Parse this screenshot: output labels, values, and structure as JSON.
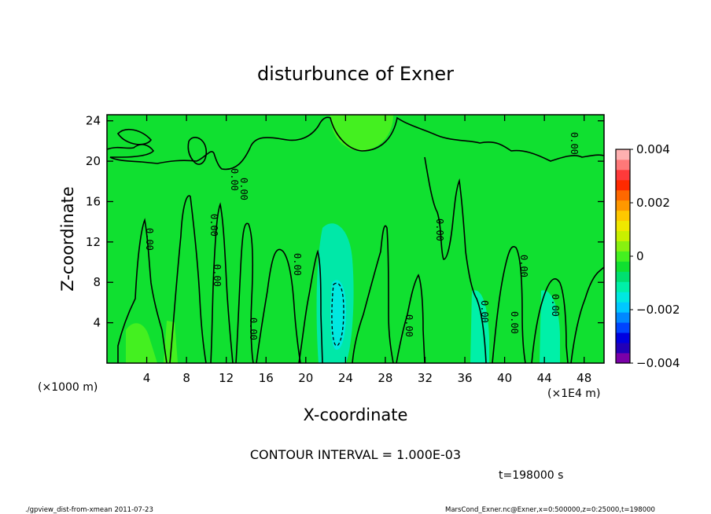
{
  "chart_data": {
    "type": "heatmap",
    "title": "disturbunce of Exner",
    "xlabel": "X-coordinate",
    "ylabel": "Z-coordinate",
    "x_ticks": [
      "4",
      "8",
      "12",
      "16",
      "20",
      "24",
      "28",
      "32",
      "36",
      "40",
      "44",
      "48"
    ],
    "x_tick_values": [
      4,
      8,
      12,
      16,
      20,
      24,
      28,
      32,
      36,
      40,
      44,
      48
    ],
    "xlim": [
      0,
      50
    ],
    "y_ticks": [
      "4",
      "8",
      "12",
      "16",
      "20",
      "24"
    ],
    "y_tick_values": [
      4,
      8,
      12,
      16,
      20,
      24
    ],
    "ylim": [
      0,
      24.6
    ],
    "x_unit_label": "(×1E4 m)",
    "y_unit_label": "(×1000 m)",
    "colorbar": {
      "labels": [
        "0.004",
        "0.002",
        "0",
        "−0.002",
        "−0.004"
      ],
      "range": [
        -0.004,
        0.004
      ],
      "colors": [
        "#7a00a8",
        "#2200b8",
        "#0000e0",
        "#0044ff",
        "#0088ff",
        "#00c8ff",
        "#00e8e0",
        "#00f0a8",
        "#00e070",
        "#10e030",
        "#44f020",
        "#88f010",
        "#c8f000",
        "#f0e800",
        "#ffc800",
        "#ff9800",
        "#ff6800",
        "#ff2a00",
        "#ff3a3a",
        "#ff7878",
        "#ffb0b0"
      ]
    },
    "contour_interval": "CONTOUR INTERVAL = 1.000E-03",
    "contour_labels": [
      "0.00",
      "-0.00"
    ],
    "grid": false
  },
  "time_label": "t=198000 s",
  "footer": {
    "left": "./gpview_dist-from-xmean  2011-07-23",
    "right": "MarsCond_Exner.nc@Exner,x=0:500000,z=0:25000,t=198000"
  }
}
